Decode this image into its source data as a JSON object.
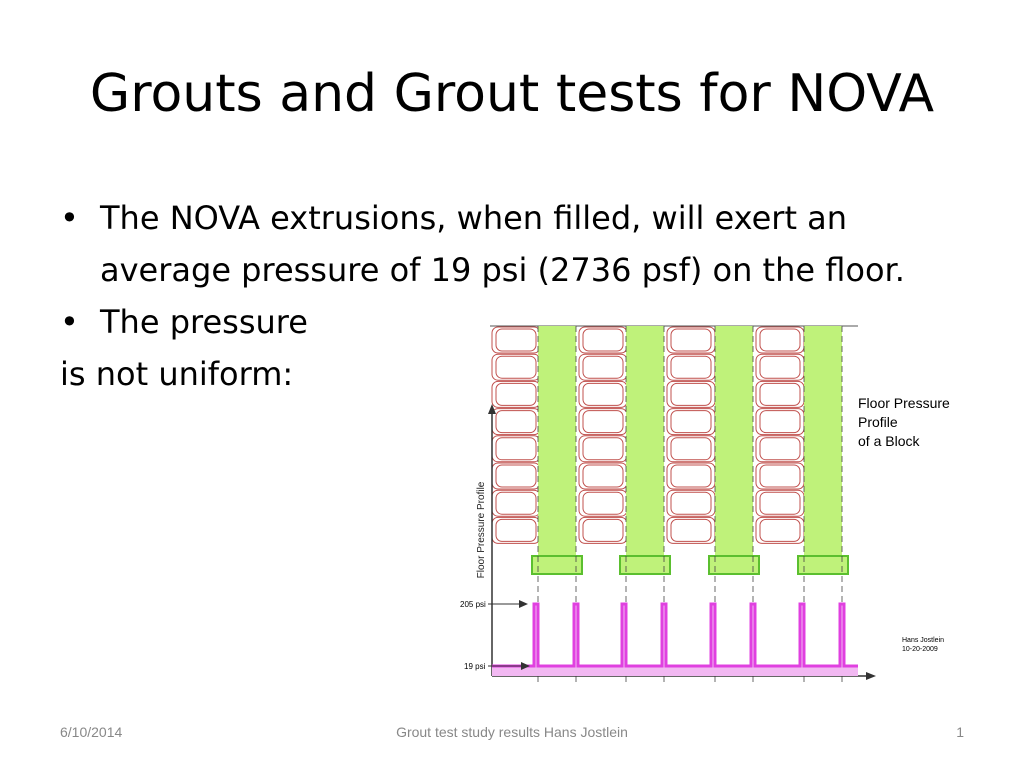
{
  "slide": {
    "title": "Grouts and Grout tests for NOVA",
    "bullets": [
      "The NOVA extrusions, when filled, will exert an average  pressure of 19 psi (2736 psf) on the floor.",
      "The pressure"
    ],
    "continuation": "is not uniform:",
    "bullet_glyph": "•"
  },
  "diagram": {
    "caption_lines": [
      "Floor Pressure",
      "Profile",
      "of a Block"
    ],
    "y_axis_label": "Floor Pressure Profile",
    "high_label": "205 psi",
    "low_label": "19 psi",
    "signature_lines": [
      "Hans Jostlein",
      "10-20-2009"
    ],
    "colors": {
      "cell_outline": "#c0504d",
      "green_fill": "#bff27a",
      "green_outline": "#5bbf2f",
      "profile": "#e040e0",
      "profile_fill": "#f2b8f2"
    }
  },
  "footer": {
    "date": "6/10/2014",
    "center": "Grout test study results    Hans Jostlein",
    "page": "1"
  }
}
